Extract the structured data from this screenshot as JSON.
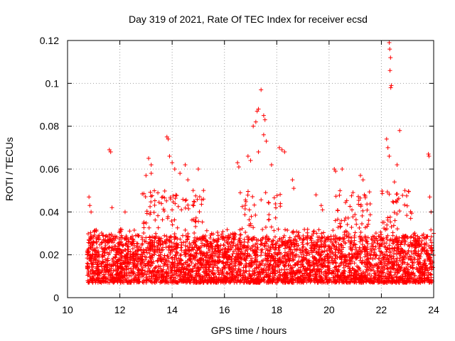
{
  "chart_data": {
    "type": "scatter",
    "title": "Day 319 of 2021, Rate Of TEC Index for receiver ecsd",
    "xlabel": "GPS time / hours",
    "ylabel": "ROTI / TECUs",
    "xlim": [
      10,
      24
    ],
    "ylim": [
      0,
      0.12
    ],
    "x_ticks": [
      10,
      12,
      14,
      16,
      18,
      20,
      22,
      24
    ],
    "y_ticks": [
      0,
      0.02,
      0.04,
      0.06,
      0.08,
      0.1,
      0.12
    ],
    "x_tick_labels": [
      "10",
      "12",
      "14",
      "16",
      "18",
      "20",
      "22",
      "24"
    ],
    "y_tick_labels": [
      "0",
      "0.02",
      "0.04",
      "0.06",
      "0.08",
      "0.1",
      "0.12"
    ],
    "grid": true,
    "marker": "+",
    "marker_color": "#ff0000",
    "series": [
      {
        "name": "ROTI",
        "data_start": 10.75,
        "data_end": 24.0,
        "baseline_range": [
          0.003,
          0.025
        ],
        "points": [
          [
            10.82,
            0.047
          ],
          [
            10.85,
            0.043
          ],
          [
            10.9,
            0.04
          ],
          [
            11.6,
            0.069
          ],
          [
            11.65,
            0.068
          ],
          [
            11.7,
            0.042
          ],
          [
            12.2,
            0.04
          ],
          [
            13.1,
            0.065
          ],
          [
            13.2,
            0.062
          ],
          [
            13.2,
            0.058
          ],
          [
            13.0,
            0.057
          ],
          [
            13.8,
            0.075
          ],
          [
            13.85,
            0.074
          ],
          [
            13.9,
            0.066
          ],
          [
            14.0,
            0.063
          ],
          [
            14.1,
            0.06
          ],
          [
            14.3,
            0.058
          ],
          [
            14.5,
            0.062
          ],
          [
            14.6,
            0.055
          ],
          [
            15.0,
            0.06
          ],
          [
            15.2,
            0.05
          ],
          [
            16.5,
            0.063
          ],
          [
            16.55,
            0.061
          ],
          [
            16.9,
            0.066
          ],
          [
            17.0,
            0.064
          ],
          [
            17.1,
            0.08
          ],
          [
            17.2,
            0.082
          ],
          [
            17.25,
            0.087
          ],
          [
            17.3,
            0.088
          ],
          [
            17.4,
            0.097
          ],
          [
            17.5,
            0.085
          ],
          [
            17.55,
            0.083
          ],
          [
            17.5,
            0.076
          ],
          [
            17.6,
            0.073
          ],
          [
            17.3,
            0.068
          ],
          [
            17.8,
            0.062
          ],
          [
            18.1,
            0.07
          ],
          [
            18.2,
            0.069
          ],
          [
            18.3,
            0.068
          ],
          [
            18.6,
            0.055
          ],
          [
            18.65,
            0.051
          ],
          [
            19.5,
            0.048
          ],
          [
            19.7,
            0.043
          ],
          [
            19.75,
            0.041
          ],
          [
            20.2,
            0.06
          ],
          [
            20.25,
            0.059
          ],
          [
            20.5,
            0.06
          ],
          [
            21.2,
            0.057
          ],
          [
            21.3,
            0.055
          ],
          [
            22.3,
            0.119
          ],
          [
            22.32,
            0.116
          ],
          [
            22.35,
            0.112
          ],
          [
            22.33,
            0.106
          ],
          [
            22.38,
            0.099
          ],
          [
            22.36,
            0.098
          ],
          [
            22.7,
            0.078
          ],
          [
            22.2,
            0.074
          ],
          [
            22.25,
            0.07
          ],
          [
            22.3,
            0.066
          ],
          [
            22.6,
            0.062
          ],
          [
            22.5,
            0.054
          ],
          [
            22.55,
            0.045
          ],
          [
            22.9,
            0.05
          ],
          [
            23.8,
            0.067
          ],
          [
            23.82,
            0.066
          ],
          [
            23.85,
            0.047
          ],
          [
            23.9,
            0.04
          ],
          [
            24.0,
            0.03
          ]
        ]
      }
    ]
  }
}
